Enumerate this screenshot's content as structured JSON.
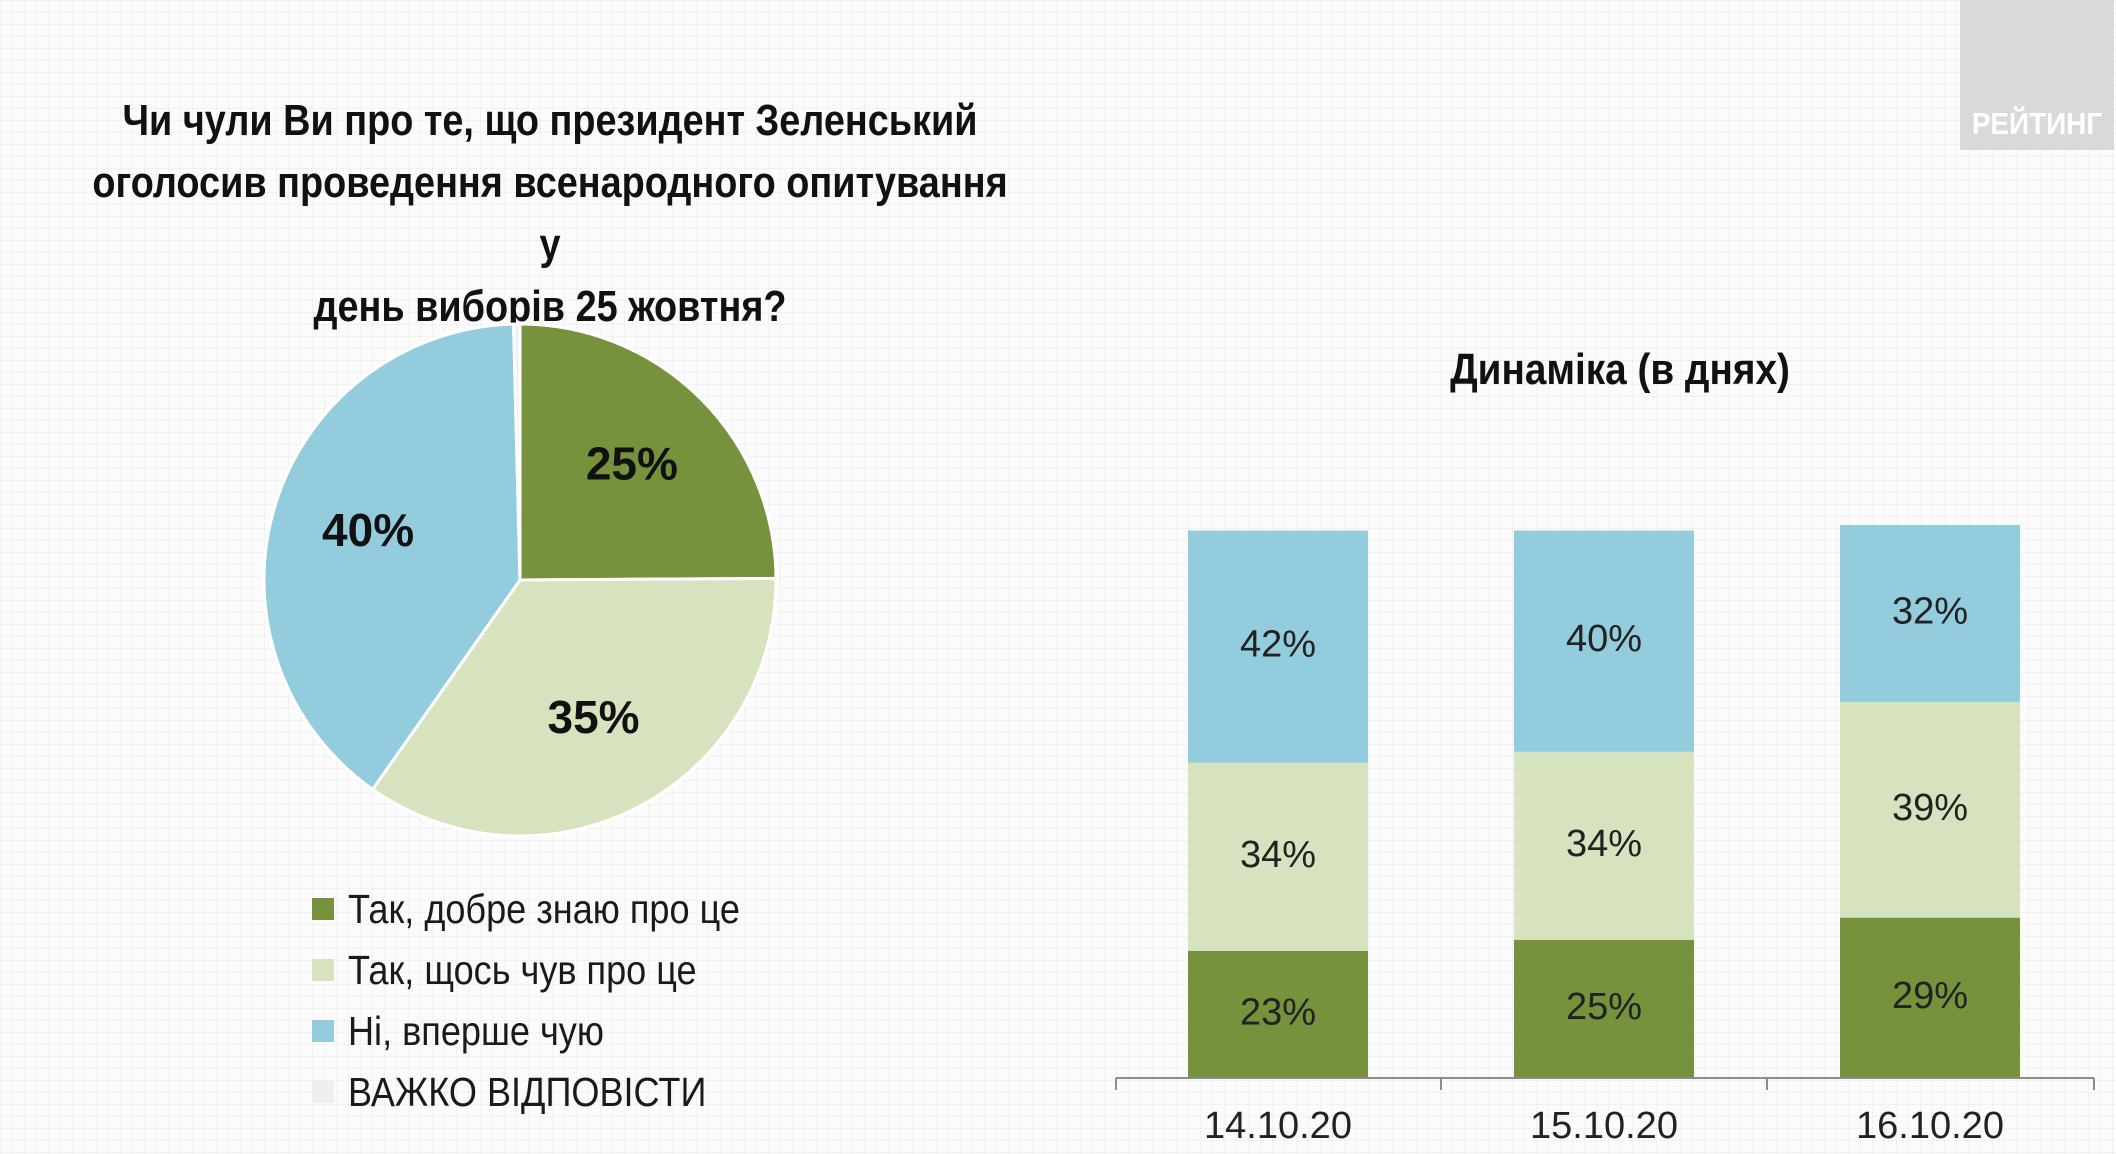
{
  "logo": {
    "text": "РЕЙТИНГ"
  },
  "chart_data": [
    {
      "type": "pie",
      "title": "Чи чули Ви про те, що президент Зеленський\nоголосив проведення  всенародного опитування у\nдень виборів 25 жовтня?",
      "slices": [
        {
          "label": "Так, добре знаю про це",
          "value": 25,
          "display": "25%",
          "color": "#77923c"
        },
        {
          "label": "Так, щось чув про це",
          "value": 35,
          "display": "35%",
          "color": "#d7e3bf"
        },
        {
          "label": "Ні, вперше чую",
          "value": 40,
          "display": "40%",
          "color": "#93cddd"
        },
        {
          "label": "ВАЖКО ВІДПОВІСТИ",
          "value": 0.4,
          "display": "",
          "color": "#efefef"
        }
      ],
      "legend": "bottom"
    },
    {
      "type": "bar",
      "stacked": true,
      "title": "Динаміка (в днях)",
      "categories": [
        "14.10.20",
        "15.10.20",
        "16.10.20"
      ],
      "series": [
        {
          "name": "Так, добре знаю про це",
          "values": [
            23,
            25,
            29
          ],
          "labels": [
            "23%",
            "25%",
            "29%"
          ],
          "color": "#77923c"
        },
        {
          "name": "Так, щось чув про це",
          "values": [
            34,
            34,
            39
          ],
          "labels": [
            "34%",
            "34%",
            "39%"
          ],
          "color": "#d7e3bf"
        },
        {
          "name": "Ні, вперше чую",
          "values": [
            42,
            40,
            32
          ],
          "labels": [
            "42%",
            "40%",
            "32%"
          ],
          "color": "#93cddd"
        }
      ],
      "ylim": [
        0,
        100
      ],
      "grid": false
    }
  ]
}
